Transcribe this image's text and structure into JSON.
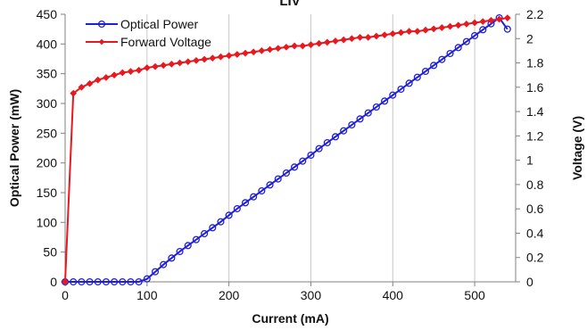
{
  "chart_data": {
    "type": "line",
    "title": "LIV",
    "xlabel": "Current (mA)",
    "ylabel_left": "Optical Power (mW)",
    "ylabel_right": "Voltage (V)",
    "xlim": [
      0,
      550
    ],
    "ylim_left": [
      0,
      450
    ],
    "ylim_right": [
      0,
      2.2
    ],
    "x_ticks": [
      "0",
      "100",
      "200",
      "300",
      "400",
      "500"
    ],
    "y_left_ticks": [
      "0",
      "50",
      "100",
      "150",
      "200",
      "250",
      "300",
      "350",
      "400",
      "450"
    ],
    "y_right_ticks": [
      "0",
      "0.2",
      "0.4",
      "0.6",
      "0.8",
      "1",
      "1.2",
      "1.4",
      "1.6",
      "1.8",
      "2",
      "2.2"
    ],
    "grid": "vertical",
    "legend_position": "top-left",
    "series": [
      {
        "name": "Optical Power",
        "axis": "left",
        "color": "#1f1fd6",
        "marker": "circle",
        "x": [
          0,
          10,
          20,
          30,
          40,
          50,
          60,
          70,
          80,
          90,
          100,
          110,
          120,
          130,
          140,
          150,
          160,
          170,
          180,
          190,
          200,
          210,
          220,
          230,
          240,
          250,
          260,
          270,
          280,
          290,
          300,
          310,
          320,
          330,
          340,
          350,
          360,
          370,
          380,
          390,
          400,
          410,
          420,
          430,
          440,
          450,
          460,
          470,
          480,
          490,
          500,
          510,
          520,
          530,
          540
        ],
        "values": [
          0,
          0,
          0,
          0,
          0,
          0,
          0,
          0,
          0,
          0,
          5,
          17,
          29,
          40,
          51,
          61,
          71,
          81,
          91,
          101,
          112,
          123,
          133,
          143,
          153,
          163,
          173,
          183,
          193,
          203,
          213,
          224,
          234,
          244,
          254,
          264,
          274,
          284,
          294,
          304,
          314,
          324,
          334,
          344,
          354,
          364,
          374,
          384,
          394,
          404,
          414,
          424,
          434,
          444,
          425
        ]
      },
      {
        "name": "Forward Voltage",
        "axis": "right",
        "color": "#e8191e",
        "marker": "diamond",
        "x": [
          0,
          10,
          20,
          30,
          40,
          50,
          60,
          70,
          80,
          90,
          100,
          110,
          120,
          130,
          140,
          150,
          160,
          170,
          180,
          190,
          200,
          210,
          220,
          230,
          240,
          250,
          260,
          270,
          280,
          290,
          300,
          310,
          320,
          330,
          340,
          350,
          360,
          370,
          380,
          390,
          400,
          410,
          420,
          430,
          440,
          450,
          460,
          470,
          480,
          490,
          500,
          510,
          520,
          530,
          540
        ],
        "values": [
          0,
          1.55,
          1.6,
          1.63,
          1.66,
          1.68,
          1.7,
          1.72,
          1.73,
          1.74,
          1.76,
          1.77,
          1.78,
          1.79,
          1.8,
          1.81,
          1.82,
          1.83,
          1.84,
          1.85,
          1.86,
          1.87,
          1.88,
          1.89,
          1.9,
          1.91,
          1.92,
          1.93,
          1.94,
          1.94,
          1.95,
          1.96,
          1.97,
          1.98,
          1.99,
          2.0,
          2.01,
          2.01,
          2.02,
          2.03,
          2.04,
          2.05,
          2.06,
          2.06,
          2.07,
          2.08,
          2.09,
          2.1,
          2.11,
          2.12,
          2.13,
          2.14,
          2.15,
          2.16,
          2.17
        ]
      }
    ]
  }
}
